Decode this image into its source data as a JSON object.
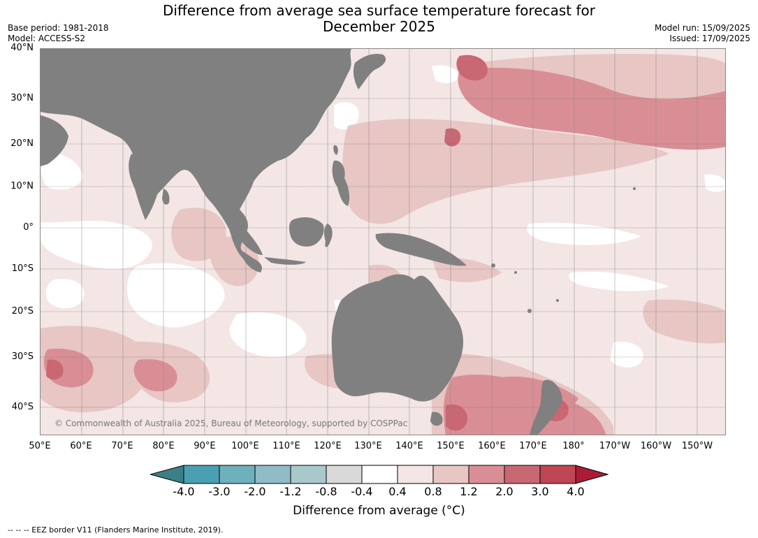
{
  "title_line1": "Difference from average sea surface temperature forecast for",
  "title_line2": "December 2025",
  "base_period": "Base period: 1981-2018",
  "model": "Model: ACCESS-S2",
  "model_run": "Model run: 15/09/2025",
  "issued": "Issued: 17/09/2025",
  "lat_labels": [
    "40°N",
    "30°N",
    "20°N",
    "10°N",
    "0°",
    "10°S",
    "20°S",
    "30°S",
    "40°S"
  ],
  "lon_labels": [
    "50°E",
    "60°E",
    "70°E",
    "80°E",
    "90°E",
    "100°E",
    "110°E",
    "120°E",
    "130°E",
    "140°E",
    "150°E",
    "160°E",
    "170°E",
    "180°",
    "170°W",
    "160°W",
    "150°W"
  ],
  "copyright": "© Commonwealth of Australia 2025, Bureau of Meteorology, supported by COSPPac",
  "colorbar": {
    "ticks": [
      "-4.0",
      "-3.0",
      "-2.0",
      "-1.2",
      "-0.8",
      "-0.4",
      "0.4",
      "0.8",
      "1.2",
      "2.0",
      "3.0",
      "4.0"
    ],
    "colors": [
      "#3d7f87",
      "#4aa0b2",
      "#6fb0bd",
      "#8fbcc6",
      "#a9c8cc",
      "#d9d9d9",
      "#ffffff",
      "#f3e6e5",
      "#e7c6c3",
      "#d98e95",
      "#c96772",
      "#bf4655",
      "#ab1d36"
    ],
    "label": "Difference from average (°C)"
  },
  "footer": "--  --  -- EEZ border V11 (Flanders Marine Institute, 2019).",
  "colors": {
    "land": "#808080",
    "anom_0_4_0_8": "#f3e6e5",
    "anom_0_8_1_2": "#e7c6c3",
    "anom_1_2_2_0": "#d98e95",
    "anom_2_0_3_0": "#c96772"
  }
}
